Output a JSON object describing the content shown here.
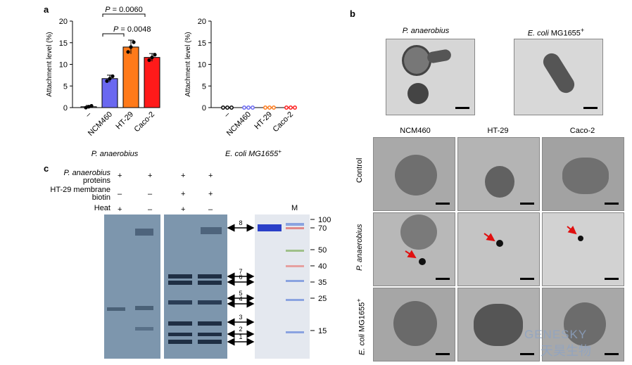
{
  "panel_labels": {
    "a": "a",
    "b": "b",
    "c": "c"
  },
  "chart_data": [
    {
      "type": "bar",
      "title": "",
      "xlabel": "P. anaerobius",
      "ylabel": "Attachment level (%)",
      "ylim": [
        0,
        20
      ],
      "yticks": [
        "0",
        "5",
        "10",
        "15",
        "20"
      ],
      "categories": [
        "–",
        "NCM460",
        "HT-29",
        "Caco-2"
      ],
      "values": [
        0.2,
        6.7,
        14.0,
        11.6
      ],
      "errors": [
        0.3,
        0.8,
        1.6,
        0.9
      ],
      "colors": [
        "#ffffff",
        "#6a68f0",
        "#ff7a1a",
        "#ff1a1a"
      ],
      "annotations": [
        "P = 0.0060",
        "P = 0.0048"
      ]
    },
    {
      "type": "bar",
      "title": "",
      "xlabel": "E. coli MG1655+",
      "ylabel": "Attachment level (%)",
      "ylim": [
        0,
        20
      ],
      "yticks": [
        "0",
        "5",
        "10",
        "15",
        "20"
      ],
      "categories": [
        "–",
        "NCM460",
        "HT-29",
        "Caco-2"
      ],
      "values": [
        0,
        0,
        0,
        0
      ],
      "colors": [
        "#000000",
        "#6a68f0",
        "#ff7a1a",
        "#ff1a1a"
      ]
    }
  ],
  "panel_b": {
    "top_labels": [
      "P. anaerobius",
      "E. coli MG1655+"
    ],
    "col_labels": [
      "NCM460",
      "HT-29",
      "Caco-2"
    ],
    "row_labels": [
      "Control",
      "P. anaerobius",
      "E. coli MG1655+"
    ]
  },
  "panel_c": {
    "row_labels": [
      "P. anaerobius proteins",
      "HT-29 membrane biotin",
      "Heat"
    ],
    "row_values": [
      [
        "+",
        "+",
        "+",
        "+"
      ],
      [
        "–",
        "–",
        "+",
        "+"
      ],
      [
        "+",
        "–",
        "+",
        "–"
      ]
    ],
    "band_numbers": [
      "8",
      "7",
      "6",
      "5",
      "4",
      "3",
      "2",
      "1"
    ],
    "marker_label": "M",
    "marker_sizes": [
      "100",
      "70",
      "50",
      "40",
      "35",
      "25",
      "15"
    ]
  },
  "watermark": {
    "brand": "GENESKY",
    "cn": "天昊生物"
  }
}
